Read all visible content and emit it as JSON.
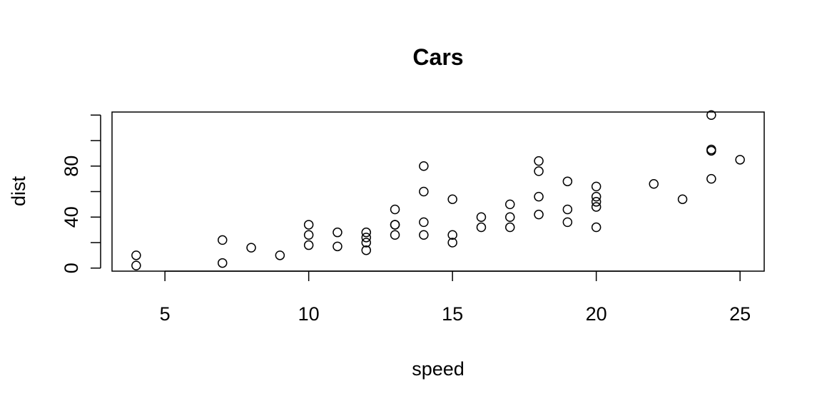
{
  "chart_data": {
    "type": "scatter",
    "title": "Cars",
    "xlabel": "speed",
    "ylabel": "dist",
    "xlim": [
      3.16,
      25.84
    ],
    "ylim": [
      -2.4,
      122.4
    ],
    "x_ticks": [
      5,
      10,
      15,
      20,
      25
    ],
    "y_ticks": [
      0,
      20,
      40,
      60,
      80,
      100,
      120
    ],
    "y_tick_labels": [
      "0",
      "",
      "40",
      "",
      "80",
      "",
      ""
    ],
    "grid": false,
    "x": [
      4,
      4,
      7,
      7,
      8,
      9,
      10,
      10,
      10,
      11,
      11,
      12,
      12,
      12,
      12,
      13,
      13,
      13,
      13,
      14,
      14,
      14,
      14,
      15,
      15,
      15,
      16,
      16,
      17,
      17,
      17,
      18,
      18,
      18,
      18,
      19,
      19,
      19,
      20,
      20,
      20,
      20,
      20,
      22,
      23,
      24,
      24,
      24,
      24,
      25
    ],
    "y": [
      2,
      10,
      4,
      22,
      16,
      10,
      18,
      26,
      34,
      17,
      28,
      14,
      20,
      24,
      28,
      26,
      34,
      34,
      46,
      26,
      36,
      60,
      80,
      20,
      26,
      54,
      32,
      40,
      32,
      40,
      50,
      42,
      56,
      76,
      84,
      36,
      46,
      68,
      32,
      48,
      52,
      56,
      64,
      66,
      54,
      70,
      92,
      93,
      120,
      85
    ]
  }
}
